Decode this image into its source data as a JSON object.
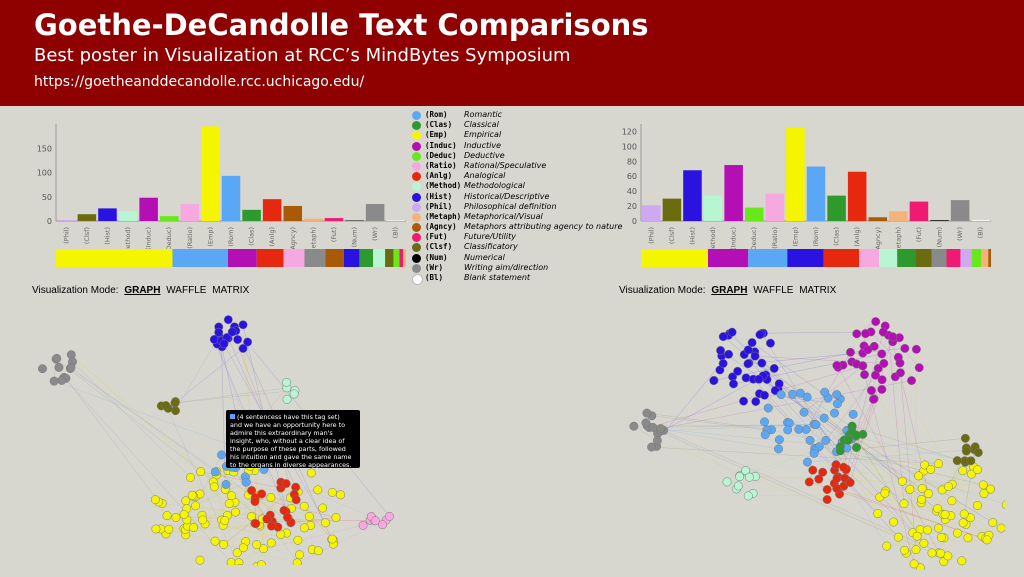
{
  "banner": {
    "title": "Goethe-DeCandolle Text Comparisons",
    "subtitle": "Best poster in Visualization at RCC’s MindBytes Symposium",
    "url": "https://goetheanddecandolle.rcc.uchicago.edu/"
  },
  "legend": [
    {
      "code": "(Rom)",
      "name": "Romantic",
      "color": "#5aa8f5"
    },
    {
      "code": "(Clas)",
      "name": "Classical",
      "color": "#2e9a2e"
    },
    {
      "code": "(Emp)",
      "name": "Empirical",
      "color": "#f5f500"
    },
    {
      "code": "(Induc)",
      "name": "Inductive",
      "color": "#b40fb4"
    },
    {
      "code": "(Deduc)",
      "name": "Deductive",
      "color": "#66e81a"
    },
    {
      "code": "(Ratio)",
      "name": "Rational/Speculative",
      "color": "#f7a8e0"
    },
    {
      "code": "(Anlg)",
      "name": "Analogical",
      "color": "#e5280e"
    },
    {
      "code": "(Method)",
      "name": "Methodological",
      "color": "#b8f5d2"
    },
    {
      "code": "(Hist)",
      "name": "Historical/Descriptive",
      "color": "#2a12e0"
    },
    {
      "code": "(Phil)",
      "name": "Philosophical definition",
      "color": "#cfa8f2"
    },
    {
      "code": "(Metaph)",
      "name": "Metaphorical/Visual",
      "color": "#f5b27a"
    },
    {
      "code": "(Agncy)",
      "name": "Metaphors attributing agency to nature",
      "color": "#a85a07"
    },
    {
      "code": "(Fut)",
      "name": "Future/Utility",
      "color": "#f01a73"
    },
    {
      "code": "(Clsf)",
      "name": "Classificatory",
      "color": "#6b6b10"
    },
    {
      "code": "(Num)",
      "name": "Numerical",
      "color": "#000000"
    },
    {
      "code": "(Wr)",
      "name": "Writing aim/direction",
      "color": "#8a8a8a"
    },
    {
      "code": "(Bl)",
      "name": "Blank statement",
      "color": "#ffffff"
    }
  ],
  "chart_data": [
    {
      "type": "bar",
      "categories": [
        "(Phil)",
        "(Clsf)",
        "(Hist)",
        "(Method)",
        "(Induc)",
        "(Deduc)",
        "(Ratio)",
        "(Emp)",
        "(Rom)",
        "(Clas)",
        "(Anlg)",
        "(Agncy)",
        "(Metaph)",
        "(Fut)",
        "(Num)",
        "(Wr)",
        "(Bl)"
      ],
      "values": [
        2,
        14,
        26,
        20,
        48,
        10,
        35,
        195,
        93,
        23,
        45,
        31,
        5,
        6,
        1,
        35,
        1
      ],
      "colors": [
        "#cfa8f2",
        "#6b6b10",
        "#2a12e0",
        "#b8f5d2",
        "#b40fb4",
        "#66e81a",
        "#f7a8e0",
        "#f5f500",
        "#5aa8f5",
        "#2e9a2e",
        "#e5280e",
        "#a85a07",
        "#f5b27a",
        "#f01a73",
        "#000000",
        "#8a8a8a",
        "#ffffff"
      ],
      "yticks": [
        0,
        50,
        100,
        150
      ],
      "ylim": [
        0,
        200
      ],
      "strip": [
        {
          "code": "Emp",
          "color": "#f5f500",
          "value": 195
        },
        {
          "code": "Rom",
          "color": "#5aa8f5",
          "value": 93
        },
        {
          "code": "Induc",
          "color": "#b40fb4",
          "value": 48
        },
        {
          "code": "Anlg",
          "color": "#e5280e",
          "value": 45
        },
        {
          "code": "Ratio",
          "color": "#f7a8e0",
          "value": 35
        },
        {
          "code": "Wr",
          "color": "#8a8a8a",
          "value": 35
        },
        {
          "code": "Agncy",
          "color": "#a85a07",
          "value": 31
        },
        {
          "code": "Hist",
          "color": "#2a12e0",
          "value": 26
        },
        {
          "code": "Clas",
          "color": "#2e9a2e",
          "value": 23
        },
        {
          "code": "Method",
          "color": "#b8f5d2",
          "value": 20
        },
        {
          "code": "Clsf",
          "color": "#6b6b10",
          "value": 14
        },
        {
          "code": "Deduc",
          "color": "#66e81a",
          "value": 10
        },
        {
          "code": "Fut",
          "color": "#f01a73",
          "value": 6
        },
        {
          "code": "Metaph",
          "color": "#f5b27a",
          "value": 5
        }
      ]
    },
    {
      "type": "bar",
      "categories": [
        "(Phil)",
        "(Clsf)",
        "(Hist)",
        "(Method)",
        "(Induc)",
        "(Deduc)",
        "(Ratio)",
        "(Emp)",
        "(Rom)",
        "(Clas)",
        "(Anlg)",
        "(Agncy)",
        "(Metaph)",
        "(Fut)",
        "(Num)",
        "(Wr)",
        "(Bl)"
      ],
      "values": [
        21,
        30,
        68,
        34,
        75,
        18,
        37,
        125,
        73,
        34,
        66,
        5,
        13,
        26,
        1,
        28,
        1
      ],
      "colors": [
        "#cfa8f2",
        "#6b6b10",
        "#2a12e0",
        "#b8f5d2",
        "#b40fb4",
        "#66e81a",
        "#f7a8e0",
        "#f5f500",
        "#5aa8f5",
        "#2e9a2e",
        "#e5280e",
        "#a85a07",
        "#f5b27a",
        "#f01a73",
        "#000000",
        "#8a8a8a",
        "#ffffff"
      ],
      "yticks": [
        0,
        20,
        40,
        60,
        80,
        100,
        120
      ],
      "ylim": [
        0,
        130
      ],
      "strip": [
        {
          "code": "Emp",
          "color": "#f5f500",
          "value": 125
        },
        {
          "code": "Induc",
          "color": "#b40fb4",
          "value": 75
        },
        {
          "code": "Rom",
          "color": "#5aa8f5",
          "value": 73
        },
        {
          "code": "Hist",
          "color": "#2a12e0",
          "value": 68
        },
        {
          "code": "Anlg",
          "color": "#e5280e",
          "value": 66
        },
        {
          "code": "Ratio",
          "color": "#f7a8e0",
          "value": 37
        },
        {
          "code": "Method",
          "color": "#b8f5d2",
          "value": 34
        },
        {
          "code": "Clas",
          "color": "#2e9a2e",
          "value": 34
        },
        {
          "code": "Clsf",
          "color": "#6b6b10",
          "value": 30
        },
        {
          "code": "Wr",
          "color": "#8a8a8a",
          "value": 28
        },
        {
          "code": "Fut",
          "color": "#f01a73",
          "value": 26
        },
        {
          "code": "Phil",
          "color": "#cfa8f2",
          "value": 21
        },
        {
          "code": "Deduc",
          "color": "#66e81a",
          "value": 18
        },
        {
          "code": "Metaph",
          "color": "#f5b27a",
          "value": 13
        },
        {
          "code": "Agncy",
          "color": "#a85a07",
          "value": 5
        }
      ]
    }
  ],
  "viz_mode": {
    "label": "Visualization Mode:",
    "graph": "GRAPH",
    "waffle": "WAFFLE",
    "matrix": "MATRIX"
  },
  "tooltip": {
    "header": "(4 sentencess have this tag set)",
    "text": "and we have an opportunity here to admire this extraordinary man's insight, who, without a clear idea of the purpose of these parts, followed his intuition and gave the same name to the organs in diverse appearances."
  },
  "graph_left": {
    "clusters": [
      {
        "color": "#f5f500",
        "count": 95
      },
      {
        "color": "#8a8a8a",
        "count": 12
      },
      {
        "color": "#2a12e0",
        "count": 18
      },
      {
        "color": "#e5280e",
        "count": 22
      },
      {
        "color": "#5aa8f5",
        "count": 14
      },
      {
        "color": "#f7a8e0",
        "count": 8
      },
      {
        "color": "#6b6b10",
        "count": 6
      },
      {
        "color": "#b8f5d2",
        "count": 5
      }
    ]
  },
  "graph_right": {
    "clusters": [
      {
        "color": "#f5f500",
        "count": 70
      },
      {
        "color": "#2a12e0",
        "count": 40
      },
      {
        "color": "#b40fb4",
        "count": 40
      },
      {
        "color": "#5aa8f5",
        "count": 40
      },
      {
        "color": "#8a8a8a",
        "count": 14
      },
      {
        "color": "#6b6b10",
        "count": 10
      },
      {
        "color": "#b8f5d2",
        "count": 10
      },
      {
        "color": "#e5280e",
        "count": 20
      },
      {
        "color": "#2e9a2e",
        "count": 12
      }
    ]
  }
}
